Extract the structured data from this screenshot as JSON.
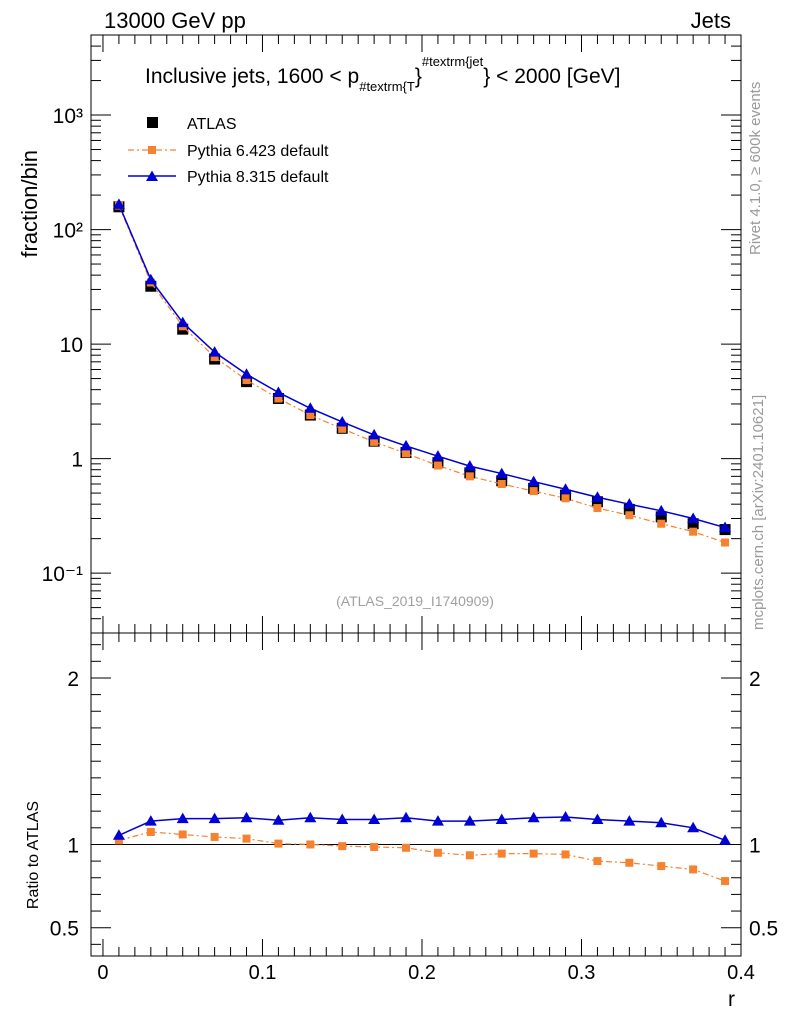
{
  "header": {
    "energy_label": "13000 GeV pp",
    "process_label": "Jets"
  },
  "side_labels": {
    "rivet": "Rivet 4.1.0, ≥ 600k events",
    "mcplots": "mcplots.cern.ch [arXiv:2401.10621]"
  },
  "chart_data": [
    {
      "type": "line",
      "panel": "main",
      "title_prefix": "Inclusive jets, 1600 < p",
      "title_sub": "#textrm{T",
      "title_close": "}",
      "title_sup": "#textrm{jet",
      "title_suffix": "} < 2000 [GeV]",
      "analysis_tag": "(ATLAS_2019_I1740909)",
      "ylabel": "fraction/bin",
      "yscale": "log",
      "ylim": [
        0.03,
        5000
      ],
      "xlim": [
        -0.0075,
        0.4
      ],
      "ytick_labels": [
        "10⁻¹",
        "1",
        "10",
        "10²",
        "10³"
      ],
      "ytick_values": [
        0.1,
        1,
        10,
        100,
        1000
      ],
      "legend_position": "top-left",
      "x": [
        0.01,
        0.03,
        0.05,
        0.07,
        0.09,
        0.11,
        0.13,
        0.15,
        0.17,
        0.19,
        0.21,
        0.23,
        0.25,
        0.27,
        0.29,
        0.31,
        0.33,
        0.35,
        0.37,
        0.39
      ],
      "series": [
        {
          "name": "ATLAS",
          "style": "data",
          "color": "#000000",
          "values": [
            158,
            32,
            13.5,
            7.4,
            4.7,
            3.35,
            2.4,
            1.84,
            1.42,
            1.13,
            0.92,
            0.75,
            0.64,
            0.55,
            0.48,
            0.42,
            0.36,
            0.31,
            0.27,
            0.24
          ]
        },
        {
          "name": "Pythia 6.423 default",
          "style": "dashdot-square",
          "color": "#f58231",
          "values": [
            162,
            34.5,
            14.3,
            7.7,
            4.85,
            3.35,
            2.4,
            1.82,
            1.4,
            1.11,
            0.87,
            0.7,
            0.6,
            0.52,
            0.45,
            0.37,
            0.32,
            0.27,
            0.23,
            0.185
          ]
        },
        {
          "name": "Pythia 8.315 default",
          "style": "solid-triangle",
          "color": "#0000d4",
          "values": [
            166,
            36.5,
            15.4,
            8.5,
            5.45,
            3.78,
            2.75,
            2.09,
            1.61,
            1.29,
            1.05,
            0.86,
            0.74,
            0.63,
            0.54,
            0.46,
            0.4,
            0.35,
            0.3,
            0.25
          ]
        }
      ]
    },
    {
      "type": "line",
      "panel": "ratio",
      "ylabel": "Ratio to ATLAS",
      "xlabel": "r",
      "ylim": [
        0.33,
        2.27
      ],
      "xlim": [
        -0.0075,
        0.4
      ],
      "yticks": [
        0.5,
        1,
        2
      ],
      "ytick_labels": [
        "0.5",
        "1",
        "2"
      ],
      "xticks": [
        0,
        0.1,
        0.2,
        0.3,
        0.4
      ],
      "xtick_labels": [
        "0",
        "0.1",
        "0.2",
        "0.3",
        "0.4"
      ],
      "reference_line": 1,
      "x": [
        0.01,
        0.03,
        0.05,
        0.07,
        0.09,
        0.11,
        0.13,
        0.15,
        0.17,
        0.19,
        0.21,
        0.23,
        0.25,
        0.27,
        0.29,
        0.31,
        0.33,
        0.35,
        0.37,
        0.39
      ],
      "series": [
        {
          "name": "Pythia 6.423 default",
          "style": "dashdot-square",
          "color": "#f58231",
          "values": [
            1.025,
            1.075,
            1.06,
            1.045,
            1.035,
            1.005,
            1.0,
            0.99,
            0.985,
            0.98,
            0.95,
            0.935,
            0.945,
            0.945,
            0.94,
            0.9,
            0.89,
            0.87,
            0.85,
            0.78
          ]
        },
        {
          "name": "Pythia 8.315 default",
          "style": "solid-triangle",
          "color": "#0000d4",
          "values": [
            1.055,
            1.14,
            1.155,
            1.155,
            1.16,
            1.145,
            1.16,
            1.15,
            1.15,
            1.16,
            1.14,
            1.14,
            1.15,
            1.16,
            1.165,
            1.15,
            1.14,
            1.13,
            1.1,
            1.025
          ]
        }
      ]
    }
  ]
}
